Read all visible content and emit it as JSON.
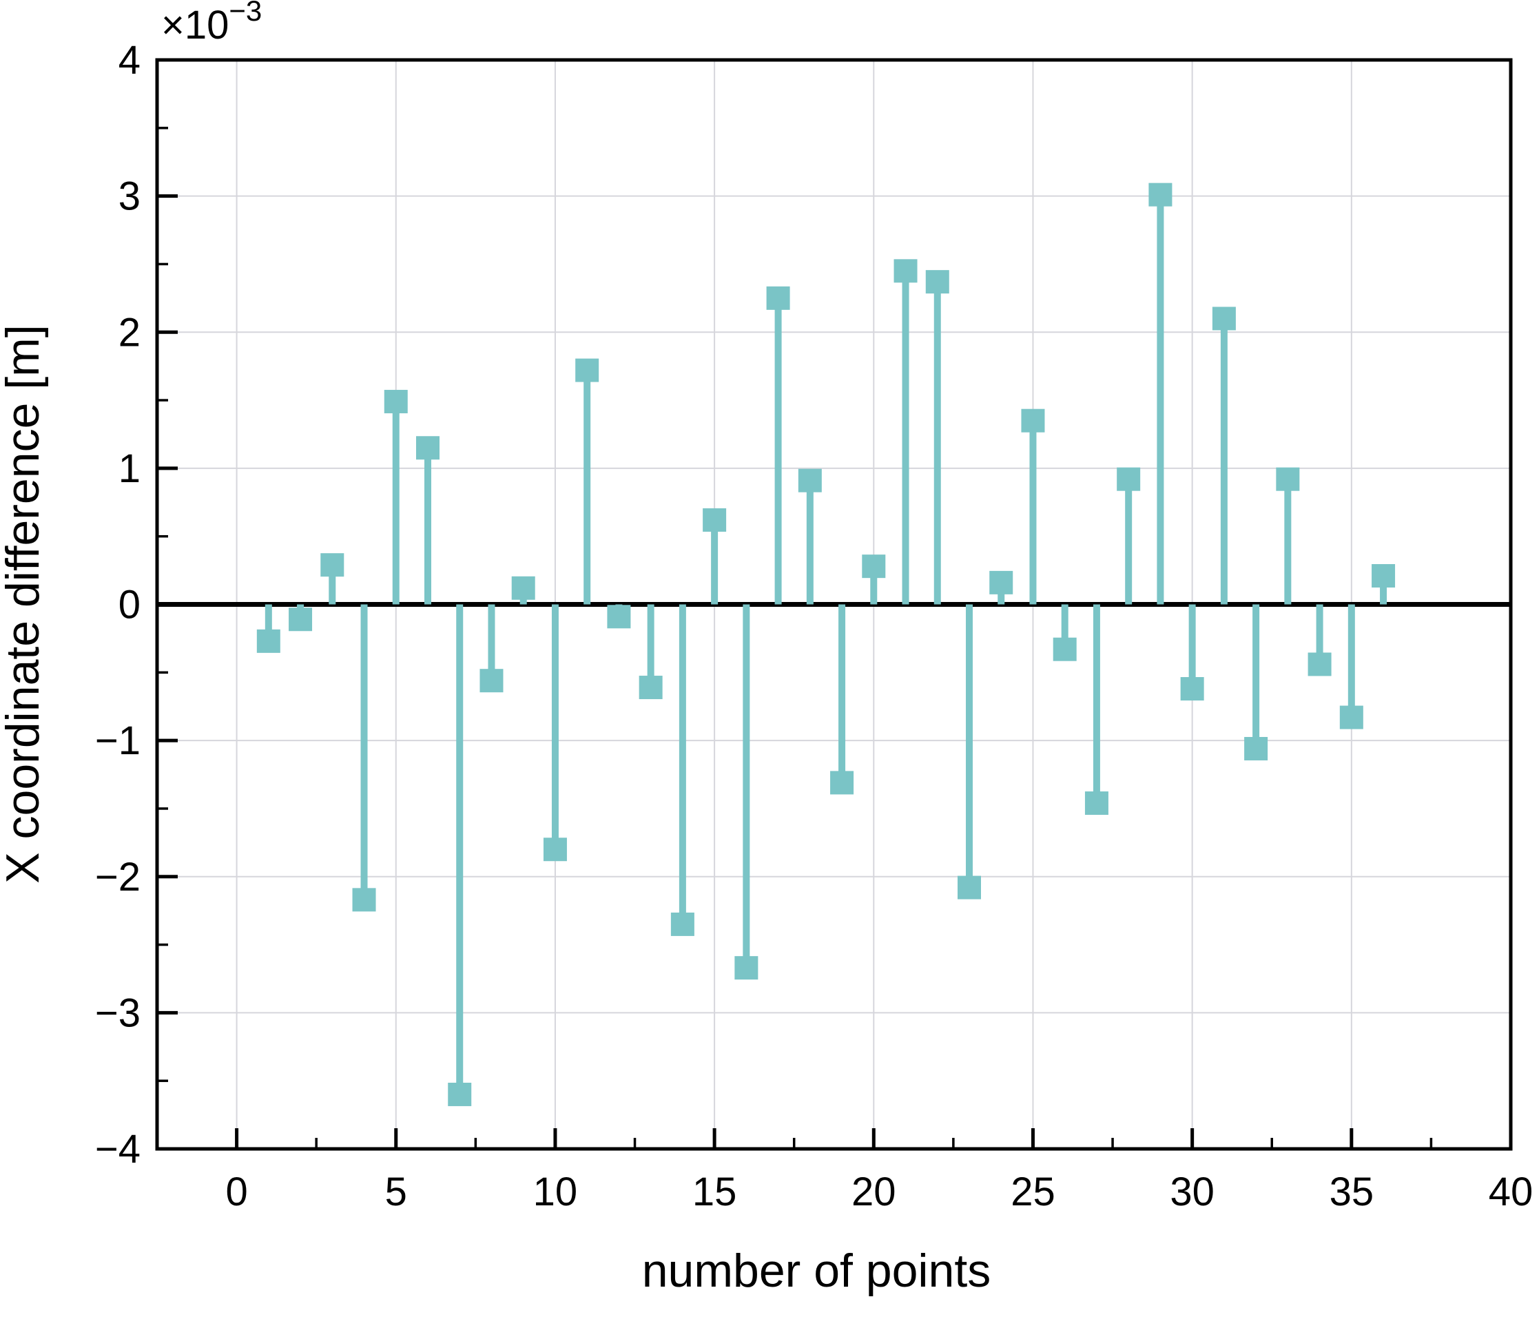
{
  "figure": {
    "background": "#ffffff"
  },
  "chart_data": {
    "type": "stem",
    "title": "",
    "xlabel": "number of points",
    "ylabel": "X coordinate difference [m]",
    "scale_mantissa": "×10",
    "scale_exponent": "−3",
    "value_scale": 0.001,
    "x": [
      1,
      2,
      3,
      4,
      5,
      6,
      7,
      8,
      9,
      10,
      11,
      12,
      13,
      14,
      15,
      16,
      17,
      18,
      19,
      20,
      21,
      22,
      23,
      24,
      25,
      26,
      27,
      28,
      29,
      30,
      31,
      32,
      33,
      34,
      35,
      36
    ],
    "values": [
      -0.27,
      -0.11,
      0.29,
      -2.17,
      1.49,
      1.15,
      -3.6,
      -0.56,
      0.12,
      -1.8,
      1.72,
      -0.09,
      -0.61,
      -2.35,
      0.62,
      -2.67,
      2.25,
      0.91,
      -1.31,
      0.28,
      2.45,
      2.37,
      -2.08,
      0.16,
      1.35,
      -0.33,
      -1.46,
      0.92,
      3.01,
      -0.62,
      2.1,
      -1.06,
      0.92,
      -0.44,
      -0.83,
      0.21
    ],
    "xlim": [
      -2.5,
      40
    ],
    "ylim": [
      -4,
      4
    ],
    "x_major_ticks": [
      0,
      5,
      10,
      15,
      20,
      25,
      30,
      35,
      40
    ],
    "x_minor_ticks": [
      2.5,
      7.5,
      12.5,
      17.5,
      22.5,
      27.5,
      32.5,
      37.5
    ],
    "y_major_ticks": [
      -4,
      -3,
      -2,
      -1,
      0,
      1,
      2,
      3,
      4
    ],
    "y_minor_ticks": [
      -3.5,
      -2.5,
      -1.5,
      -0.5,
      0.5,
      1.5,
      2.5,
      3.5
    ],
    "grid": true,
    "legend_position": "none",
    "style": {
      "series_color": "#7ac4c6",
      "grid_color": "#d6d6dc",
      "axis_color": "#000000",
      "zero_line_color": "#000000"
    }
  }
}
